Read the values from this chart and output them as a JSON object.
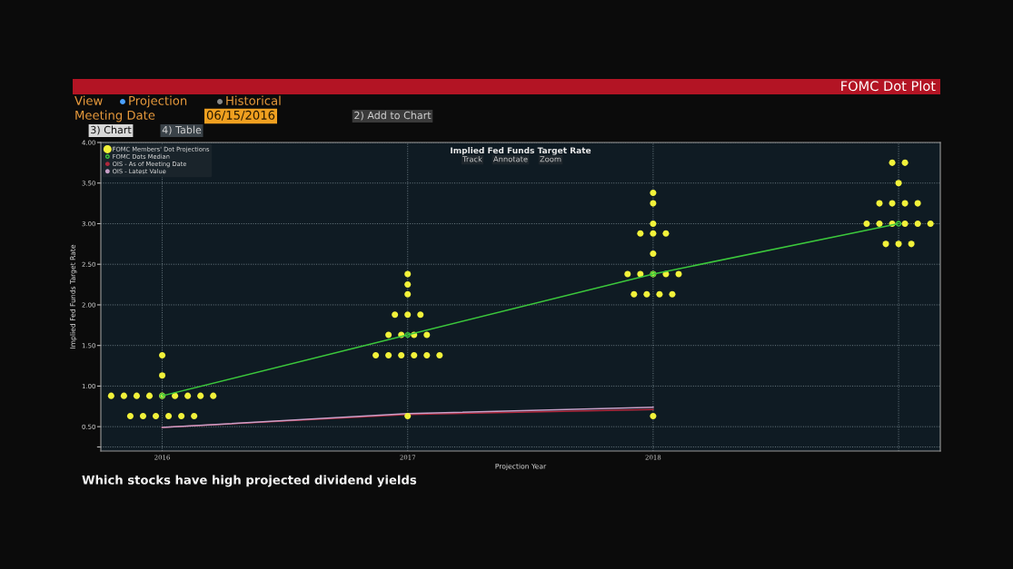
{
  "chart_data": {
    "type": "scatter",
    "title": "FOMC Dot Plot",
    "subtitle": "Implied Fed Funds Target Rate",
    "xlabel": "Projection Year",
    "ylabel": "Implied Fed Funds Target Rate",
    "xlim": [
      2015.75,
      2019.17
    ],
    "xticks": [
      2016,
      2017,
      2018,
      {
        "value": 2019,
        "label": null
      }
    ],
    "ylim": [
      0.2,
      4.0
    ],
    "yticks": [
      {
        "value": 0.25,
        "label": null
      },
      {
        "value": 0.5,
        "label": "0.50"
      },
      {
        "value": 1.0,
        "label": "1.00"
      },
      {
        "value": 1.5,
        "label": "1.50"
      },
      {
        "value": 2.0,
        "label": "2.00"
      },
      {
        "value": 2.5,
        "label": "2.50"
      },
      {
        "value": 3.0,
        "label": "3.00"
      },
      {
        "value": 3.5,
        "label": "3.50"
      },
      {
        "value": 4.0,
        "label": "4.00"
      }
    ],
    "grid": true,
    "legend": "top left",
    "series": [
      {
        "name": "FOMC Members' Dot Projections",
        "marker": "circle",
        "color": "#f2f23a",
        "x": [
          2016,
          2016,
          2015.792,
          2015.844,
          2015.896,
          2015.948,
          2016.0,
          2016.052,
          2016.104,
          2016.156,
          2016.208,
          2015.87,
          2015.922,
          2015.974,
          2016.026,
          2016.078,
          2016.13,
          2017,
          2017,
          2017,
          2016.948,
          2017,
          2017.052,
          2016.922,
          2016.974,
          2017.026,
          2017.078,
          2016.87,
          2016.922,
          2016.974,
          2017.026,
          2017.078,
          2017.13,
          2017,
          2018,
          2018,
          2018,
          2017.948,
          2018,
          2018.052,
          2018,
          2017.896,
          2017.948,
          2018,
          2018.052,
          2018.104,
          2017.922,
          2017.974,
          2018.026,
          2018.078,
          2018,
          2018.974,
          2019.026,
          2019,
          2018.922,
          2018.974,
          2019.026,
          2019.078,
          2018.87,
          2018.922,
          2018.974,
          2019.026,
          2019.078,
          2019.13,
          2018.948,
          2019,
          2019.052
        ],
        "values": [
          1.38,
          1.13,
          0.88,
          0.88,
          0.88,
          0.88,
          0.88,
          0.88,
          0.88,
          0.88,
          0.88,
          0.63,
          0.63,
          0.63,
          0.63,
          0.63,
          0.63,
          2.38,
          2.25,
          2.13,
          1.88,
          1.88,
          1.88,
          1.63,
          1.63,
          1.63,
          1.63,
          1.38,
          1.38,
          1.38,
          1.38,
          1.38,
          1.38,
          0.63,
          3.38,
          3.25,
          3.0,
          2.88,
          2.88,
          2.88,
          2.63,
          2.38,
          2.38,
          2.38,
          2.38,
          2.38,
          2.13,
          2.13,
          2.13,
          2.13,
          0.63,
          3.75,
          3.75,
          3.5,
          3.25,
          3.25,
          3.25,
          3.25,
          3.0,
          3.0,
          3.0,
          3.0,
          3.0,
          3.0,
          2.75,
          2.75,
          2.75
        ]
      },
      {
        "name": "FOMC Dots Median",
        "type": "line",
        "marker": "circle",
        "color": "#3cc83c",
        "x": [
          2016,
          2017,
          2018,
          2019
        ],
        "values": [
          0.88,
          1.63,
          2.38,
          3.0
        ]
      },
      {
        "name": "OIS - As of Meeting Date",
        "type": "line",
        "marker": "none",
        "color": "#b0283c",
        "x": [
          2016,
          2017,
          2018
        ],
        "values": [
          0.49,
          0.65,
          0.71
        ]
      },
      {
        "name": "OIS - Latest Value",
        "type": "line",
        "marker": "none",
        "color": "#c8a0c8",
        "x": [
          2016,
          2017,
          2018
        ],
        "values": [
          0.49,
          0.66,
          0.74
        ]
      }
    ],
    "annotations": [
      "View",
      "Projection",
      "Historical",
      "Meeting Date",
      "06/15/2016",
      "2) Add to Chart",
      "3) Chart",
      "4) Table",
      "Track",
      "Annotate",
      "Zoom",
      "Which stocks have high projected dividend yields"
    ]
  }
}
